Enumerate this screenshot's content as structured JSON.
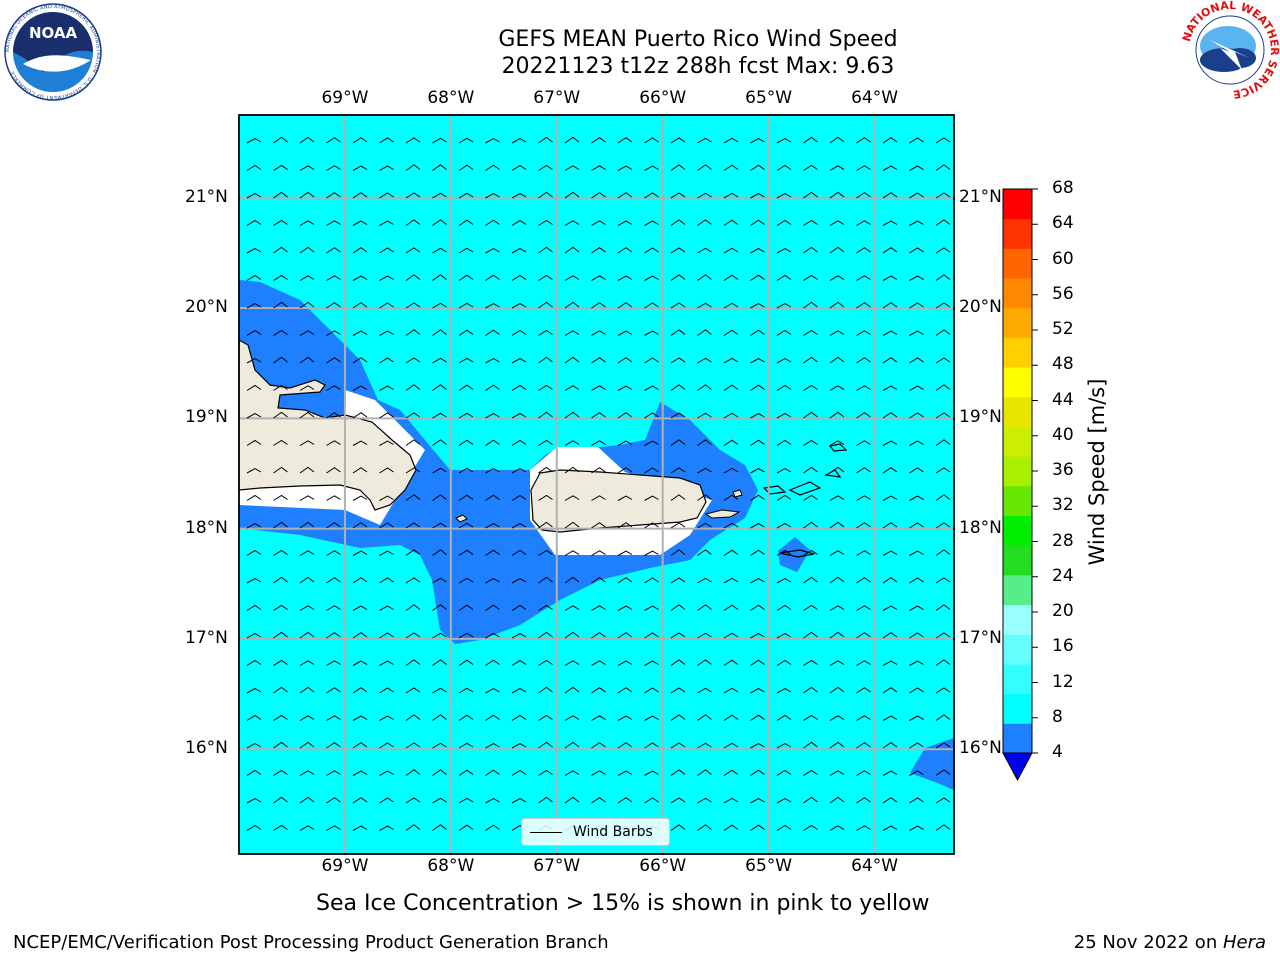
{
  "title": {
    "line1": "GEFS MEAN Puerto Rico Wind Speed",
    "line2": "20221123 t12z 288h fcst   Max: 9.63"
  },
  "map": {
    "lon_labels": [
      "69°W",
      "68°W",
      "67°W",
      "66°W",
      "65°W",
      "64°W"
    ],
    "lat_labels": [
      "21°N",
      "20°N",
      "19°N",
      "18°N",
      "17°N",
      "16°N"
    ],
    "lon_values": [
      -69,
      -68,
      -67,
      -66,
      -65,
      -64
    ],
    "lat_values": [
      21,
      20,
      19,
      18,
      17,
      16
    ],
    "extent": {
      "lon_min": -70,
      "lon_max": -63.25,
      "lat_min": 15.05,
      "lat_max": 21.75
    },
    "ocean_color": "#00ffff",
    "land_color": "#efebdc",
    "low_wind_color": "#1e7fff",
    "grid": true
  },
  "colorbar": {
    "title": "Wind Speed [m/s]",
    "ticks": [
      "68",
      "64",
      "60",
      "56",
      "52",
      "48",
      "44",
      "40",
      "36",
      "32",
      "28",
      "24",
      "20",
      "16",
      "12",
      "8",
      "4"
    ],
    "colors": [
      "#0000ee",
      "#1e7fff",
      "#00ffff",
      "#33ffff",
      "#66ffff",
      "#99ffff",
      "#55ee88",
      "#22dd22",
      "#00ee00",
      "#66e600",
      "#aaee00",
      "#ccee00",
      "#e6e600",
      "#ffff00",
      "#ffd000",
      "#ffaa00",
      "#ff8800",
      "#ff6600",
      "#ff3300",
      "#ff0000"
    ],
    "bins": [
      4,
      8,
      12,
      16,
      20,
      24,
      28,
      32,
      36,
      40,
      44,
      48,
      52,
      56,
      60,
      64,
      68
    ]
  },
  "legend": {
    "label": "Wind Barbs"
  },
  "note": "Sea Ice Concentration > 15% is shown in pink to yellow",
  "footer": {
    "left": "NCEP/EMC/Verification Post Processing Product Generation Branch",
    "date": "25 Nov 2022 on ",
    "machine": "Hera"
  },
  "logos": {
    "noaa_text": "NOAA",
    "noaa_ring_text": "NATIONAL OCEANIC AND ATMOSPHERIC ADMINISTRATION · U.S. DEPARTMENT OF COMMERCE",
    "nws_ring_text": "NATIONAL WEATHER SERVICE"
  }
}
